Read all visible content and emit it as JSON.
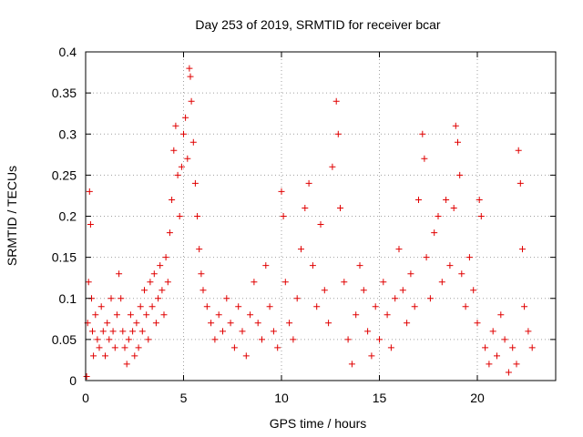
{
  "chart_data": {
    "type": "scatter",
    "title": "Day 253 of 2019, SRMTID for receiver bcar",
    "xlabel": "GPS time / hours",
    "ylabel": "SRMTID / TECUs",
    "xlim": [
      0,
      24
    ],
    "ylim": [
      0,
      0.4
    ],
    "x_ticks": [
      0,
      5,
      10,
      15,
      20
    ],
    "x_tick_labels": [
      "0",
      "5",
      "10",
      "15",
      "20"
    ],
    "y_ticks": [
      0,
      0.05,
      0.1,
      0.15,
      0.2,
      0.25,
      0.3,
      0.35,
      0.4
    ],
    "y_tick_labels": [
      "0",
      "0.05",
      "0.1",
      "0.15",
      "0.2",
      "0.25",
      "0.3",
      "0.35",
      "0.4"
    ],
    "grid": true,
    "marker": "plus",
    "color": "#e00000",
    "series": [
      {
        "name": "SRMTID",
        "points": [
          [
            0.05,
            0.005
          ],
          [
            0.1,
            0.07
          ],
          [
            0.15,
            0.12
          ],
          [
            0.2,
            0.23
          ],
          [
            0.25,
            0.19
          ],
          [
            0.3,
            0.1
          ],
          [
            0.35,
            0.06
          ],
          [
            0.4,
            0.03
          ],
          [
            0.5,
            0.08
          ],
          [
            0.6,
            0.05
          ],
          [
            0.7,
            0.04
          ],
          [
            0.8,
            0.09
          ],
          [
            0.9,
            0.06
          ],
          [
            1.0,
            0.03
          ],
          [
            1.1,
            0.07
          ],
          [
            1.2,
            0.05
          ],
          [
            1.3,
            0.1
          ],
          [
            1.4,
            0.06
          ],
          [
            1.5,
            0.04
          ],
          [
            1.6,
            0.08
          ],
          [
            1.7,
            0.13
          ],
          [
            1.8,
            0.1
          ],
          [
            1.9,
            0.06
          ],
          [
            2.0,
            0.04
          ],
          [
            2.1,
            0.02
          ],
          [
            2.2,
            0.05
          ],
          [
            2.3,
            0.08
          ],
          [
            2.4,
            0.06
          ],
          [
            2.5,
            0.03
          ],
          [
            2.6,
            0.07
          ],
          [
            2.7,
            0.04
          ],
          [
            2.8,
            0.09
          ],
          [
            2.9,
            0.06
          ],
          [
            3.0,
            0.11
          ],
          [
            3.1,
            0.08
          ],
          [
            3.2,
            0.05
          ],
          [
            3.3,
            0.12
          ],
          [
            3.4,
            0.09
          ],
          [
            3.5,
            0.13
          ],
          [
            3.6,
            0.07
          ],
          [
            3.7,
            0.1
          ],
          [
            3.8,
            0.14
          ],
          [
            3.9,
            0.11
          ],
          [
            4.0,
            0.08
          ],
          [
            4.1,
            0.15
          ],
          [
            4.2,
            0.12
          ],
          [
            4.3,
            0.18
          ],
          [
            4.4,
            0.22
          ],
          [
            4.5,
            0.28
          ],
          [
            4.6,
            0.31
          ],
          [
            4.7,
            0.25
          ],
          [
            4.8,
            0.2
          ],
          [
            4.9,
            0.26
          ],
          [
            5.0,
            0.3
          ],
          [
            5.1,
            0.32
          ],
          [
            5.2,
            0.27
          ],
          [
            5.3,
            0.38
          ],
          [
            5.35,
            0.37
          ],
          [
            5.4,
            0.34
          ],
          [
            5.5,
            0.29
          ],
          [
            5.6,
            0.24
          ],
          [
            5.7,
            0.2
          ],
          [
            5.8,
            0.16
          ],
          [
            5.9,
            0.13
          ],
          [
            6.0,
            0.11
          ],
          [
            6.2,
            0.09
          ],
          [
            6.4,
            0.07
          ],
          [
            6.6,
            0.05
          ],
          [
            6.8,
            0.08
          ],
          [
            7.0,
            0.06
          ],
          [
            7.2,
            0.1
          ],
          [
            7.4,
            0.07
          ],
          [
            7.6,
            0.04
          ],
          [
            7.8,
            0.09
          ],
          [
            8.0,
            0.06
          ],
          [
            8.2,
            0.03
          ],
          [
            8.4,
            0.08
          ],
          [
            8.6,
            0.12
          ],
          [
            8.8,
            0.07
          ],
          [
            9.0,
            0.05
          ],
          [
            9.2,
            0.14
          ],
          [
            9.4,
            0.09
          ],
          [
            9.6,
            0.06
          ],
          [
            9.8,
            0.04
          ],
          [
            10.0,
            0.23
          ],
          [
            10.1,
            0.2
          ],
          [
            10.2,
            0.12
          ],
          [
            10.4,
            0.07
          ],
          [
            10.6,
            0.05
          ],
          [
            10.8,
            0.1
          ],
          [
            11.0,
            0.16
          ],
          [
            11.2,
            0.21
          ],
          [
            11.4,
            0.24
          ],
          [
            11.6,
            0.14
          ],
          [
            11.8,
            0.09
          ],
          [
            12.0,
            0.19
          ],
          [
            12.2,
            0.11
          ],
          [
            12.4,
            0.07
          ],
          [
            12.6,
            0.26
          ],
          [
            12.8,
            0.34
          ],
          [
            12.9,
            0.3
          ],
          [
            13.0,
            0.21
          ],
          [
            13.2,
            0.12
          ],
          [
            13.4,
            0.05
          ],
          [
            13.6,
            0.02
          ],
          [
            13.8,
            0.08
          ],
          [
            14.0,
            0.14
          ],
          [
            14.2,
            0.11
          ],
          [
            14.4,
            0.06
          ],
          [
            14.6,
            0.03
          ],
          [
            14.8,
            0.09
          ],
          [
            15.0,
            0.05
          ],
          [
            15.2,
            0.12
          ],
          [
            15.4,
            0.08
          ],
          [
            15.6,
            0.04
          ],
          [
            15.8,
            0.1
          ],
          [
            16.0,
            0.16
          ],
          [
            16.2,
            0.11
          ],
          [
            16.4,
            0.07
          ],
          [
            16.6,
            0.13
          ],
          [
            16.8,
            0.09
          ],
          [
            17.0,
            0.22
          ],
          [
            17.2,
            0.3
          ],
          [
            17.3,
            0.27
          ],
          [
            17.4,
            0.15
          ],
          [
            17.6,
            0.1
          ],
          [
            17.8,
            0.18
          ],
          [
            18.0,
            0.2
          ],
          [
            18.2,
            0.12
          ],
          [
            18.4,
            0.22
          ],
          [
            18.6,
            0.14
          ],
          [
            18.8,
            0.21
          ],
          [
            18.9,
            0.31
          ],
          [
            19.0,
            0.29
          ],
          [
            19.1,
            0.25
          ],
          [
            19.2,
            0.13
          ],
          [
            19.4,
            0.09
          ],
          [
            19.6,
            0.15
          ],
          [
            19.8,
            0.11
          ],
          [
            20.0,
            0.07
          ],
          [
            20.1,
            0.22
          ],
          [
            20.2,
            0.2
          ],
          [
            20.4,
            0.04
          ],
          [
            20.6,
            0.02
          ],
          [
            20.8,
            0.06
          ],
          [
            21.0,
            0.03
          ],
          [
            21.2,
            0.08
          ],
          [
            21.4,
            0.05
          ],
          [
            21.6,
            0.01
          ],
          [
            21.8,
            0.04
          ],
          [
            22.0,
            0.02
          ],
          [
            22.1,
            0.28
          ],
          [
            22.2,
            0.24
          ],
          [
            22.3,
            0.16
          ],
          [
            22.4,
            0.09
          ],
          [
            22.6,
            0.06
          ],
          [
            22.8,
            0.04
          ]
        ]
      }
    ]
  }
}
